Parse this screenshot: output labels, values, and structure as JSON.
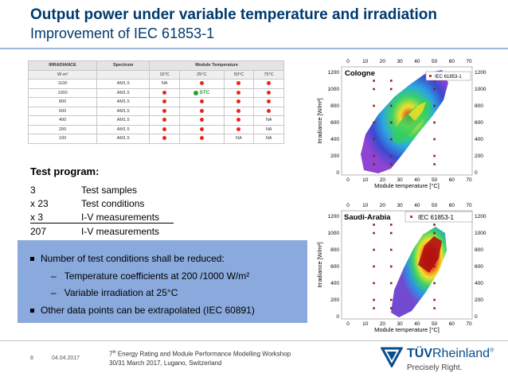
{
  "header": {
    "title": "Output power under variable temperature and irradiation",
    "subtitle": "Improvement of IEC 61853-1"
  },
  "table": {
    "col_irradiance": "IRRADIANCE",
    "col_spectrum": "Spectrum",
    "col_module_temp": "Module Temperature",
    "unit": "W·m²",
    "temps": [
      "15°C",
      "25°C",
      "50°C",
      "75°C"
    ],
    "na": "NA",
    "stc": "STC",
    "rows": [
      {
        "irr": "1100",
        "spec": "AM1.5"
      },
      {
        "irr": "1000",
        "spec": "AM1.5"
      },
      {
        "irr": "800",
        "spec": "AM1.5"
      },
      {
        "irr": "600",
        "spec": "AM1.5"
      },
      {
        "irr": "400",
        "spec": "AM1.5"
      },
      {
        "irr": "200",
        "spec": "AM1.5"
      },
      {
        "irr": "100",
        "spec": "AM1.5"
      }
    ]
  },
  "test_program": {
    "title": "Test program:",
    "items": [
      {
        "n": "3",
        "t": "Test samples"
      },
      {
        "n": "x 23",
        "t": "Test conditions"
      },
      {
        "n": "x 3",
        "t": "I-V measurements"
      },
      {
        "n": "207",
        "t": "I-V measurements"
      }
    ]
  },
  "bullets": {
    "b1": "Number of test conditions shall be reduced:",
    "s1": "Temperature coefficients at 200 /1000 W/m²",
    "s2": "Variable irradiation  at 25°C",
    "b2": "Other data points can be extrapolated (IEC 60891)",
    "dash": "–"
  },
  "plots": {
    "cologne": {
      "location": "Cologne",
      "legend": "IEC 61853-1",
      "xlabel": "Module temperature [°C]",
      "ylabel": "Irradiance [W/m²]",
      "xticks": [
        "0",
        "10",
        "20",
        "30",
        "40",
        "50",
        "60",
        "70"
      ],
      "yticks": [
        "0",
        "200",
        "400",
        "600",
        "800",
        "1000",
        "1200"
      ]
    },
    "saudi": {
      "location": "Saudi-Arabia",
      "legend": "IEC 61853-1",
      "xlabel": "Module temperature [°C]",
      "ylabel": "Irradiance [W/m²]",
      "xticks": [
        "0",
        "10",
        "20",
        "30",
        "40",
        "50",
        "60",
        "70"
      ],
      "yticks": [
        "0",
        "200",
        "400",
        "600",
        "800",
        "1000",
        "1200"
      ]
    }
  },
  "footer": {
    "page": "8",
    "date": "04.04.2017",
    "workshop_sup": "th",
    "workshop_num": "7",
    "workshop_rest": " Energy Rating and Module Performance Modelling Workshop",
    "workshop_line2": "30/31 March 2017, Lugano, Switzerland",
    "brand_a": "TÜV",
    "brand_b": "Rheinland",
    "reg": "®",
    "slogan": "Precisely Right."
  },
  "colors": {
    "title": "#003a6e",
    "box": "#8aa9dc",
    "brand": "#0a4d8c",
    "dot": "#e8261c"
  }
}
